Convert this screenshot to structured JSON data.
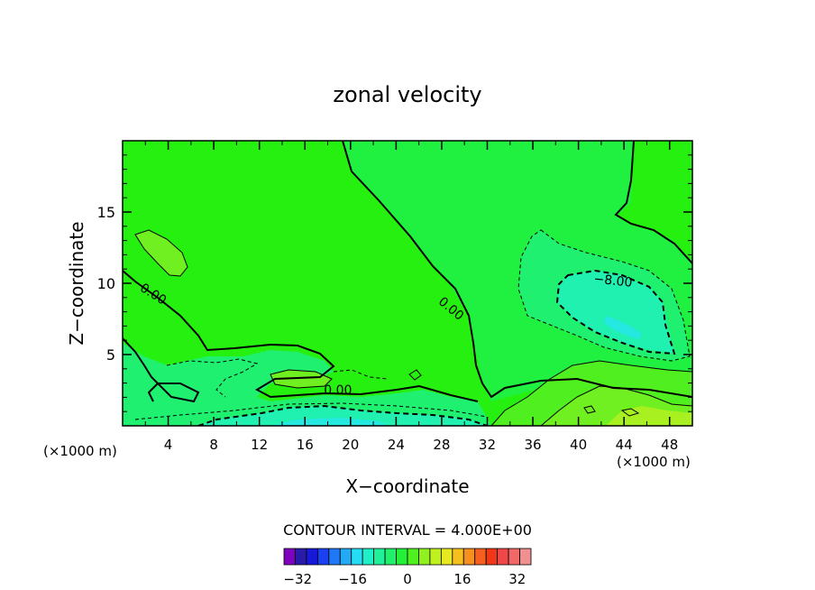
{
  "chart_data": {
    "type": "heatmap",
    "title": "zonal velocity",
    "xlabel": "X−coordinate",
    "ylabel": "Z−coordinate",
    "x_unit_left": "(×1000 m)",
    "x_unit_right": "(×1000 m)",
    "xlim": [
      0,
      50
    ],
    "ylim": [
      0,
      20
    ],
    "x_ticks": [
      4,
      8,
      12,
      16,
      20,
      24,
      28,
      32,
      36,
      40,
      44,
      48
    ],
    "y_ticks": [
      5,
      10,
      15
    ],
    "contour_interval_text": "CONTOUR INTERVAL = 4.000E+00",
    "contour_labels": [
      {
        "text": "0.00",
        "x": 2.5,
        "y": 9.0
      },
      {
        "text": "0.00",
        "x": 28.6,
        "y": 8.0
      },
      {
        "text": "0.00",
        "x": 18.9,
        "y": 2.2
      },
      {
        "text": "−8.00",
        "x": 43.0,
        "y": 9.9
      }
    ],
    "colorbar": {
      "levels_min": -36,
      "levels_max": 36,
      "step": 4,
      "tick_labels": [
        "−32",
        "−16",
        "0",
        "16",
        "32"
      ],
      "tick_values": [
        -32,
        -16,
        0,
        16,
        32
      ],
      "colors": [
        "#8000c0",
        "#2a1aa8",
        "#1818d8",
        "#1a40f0",
        "#1f78f5",
        "#22aaf5",
        "#25dcf5",
        "#20f0c8",
        "#20f09a",
        "#20f06a",
        "#25f038",
        "#50f020",
        "#90f020",
        "#c0f020",
        "#e8e820",
        "#f5c01f",
        "#f5901f",
        "#f5601f",
        "#f03818",
        "#f04848",
        "#f06868",
        "#f09090"
      ]
    },
    "regions": [
      {
        "name": "background",
        "value": 2,
        "color": "#25f010"
      },
      {
        "name": "mid-domain",
        "value": 0,
        "color": "#20f040"
      },
      {
        "name": "negative-weak",
        "value": -4,
        "color": "#20f070"
      },
      {
        "name": "negative-moderate",
        "value": -8,
        "color": "#20f0b0"
      },
      {
        "name": "negative-strong",
        "value": -12,
        "color": "#25e8e0"
      },
      {
        "name": "positive-weak",
        "value": 4,
        "color": "#70f020"
      },
      {
        "name": "positive-moderate",
        "value": 8,
        "color": "#a8f020"
      }
    ]
  }
}
